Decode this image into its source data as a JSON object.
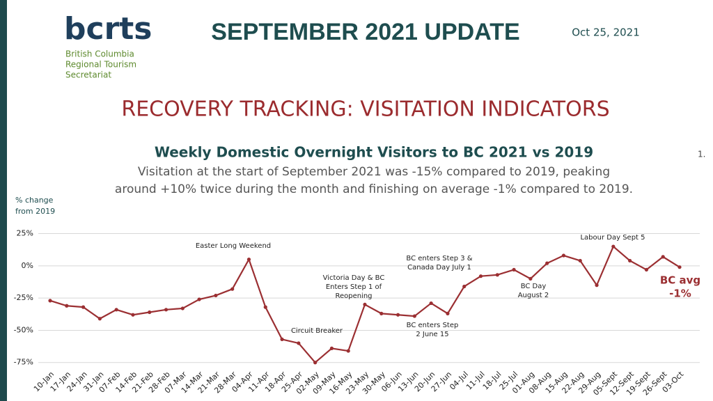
{
  "header": {
    "logo": "bcrts",
    "logo_lines": [
      "British Columbia",
      "Regional Tourism",
      "Secretariat"
    ],
    "title": "SEPTEMBER 2021 UPDATE",
    "date": "Oct 25, 2021",
    "heading": "RECOVERY TRACKING: VISITATION INDICATORS",
    "page_number": "1."
  },
  "chart_data": {
    "type": "line",
    "title": "Weekly Domestic Overnight Visitors to BC 2021 vs 2019",
    "subtitle": [
      "Visitation at the start of September 2021 was -15% compared to 2019, peaking",
      "around +10% twice during the month and finishing on average -1% compared to 2019."
    ],
    "y_label": [
      "% change",
      "from 2019"
    ],
    "categories": [
      "10-Jan",
      "17-Jan",
      "24-Jan",
      "31-Jan",
      "07-Feb",
      "14-Feb",
      "21-Feb",
      "28-Feb",
      "07-Mar",
      "14-Mar",
      "21-Mar",
      "28-Mar",
      "04-Apr",
      "11-Apr",
      "18-Apr",
      "25-Apr",
      "02-May",
      "09-May",
      "16-May",
      "23-May",
      "30-May",
      "06-Jun",
      "13-Jun",
      "20-Jun",
      "27-Jun",
      "04-Jul",
      "11-Jul",
      "18-Jul",
      "25-Jul",
      "01-Aug",
      "08-Aug",
      "15-Aug",
      "22-Aug",
      "29-Aug",
      "05-Sept",
      "12-Sept",
      "19-Sept",
      "26-Sept",
      "03-Oct"
    ],
    "values": [
      -27,
      -31,
      -32,
      -41,
      -34,
      -38,
      -36,
      -34,
      -33,
      -26,
      -23,
      -18,
      5,
      -32,
      -57,
      -60,
      -75,
      -64,
      -66,
      -30,
      -37,
      -38,
      -39,
      -29,
      -37,
      -16,
      -8,
      -7,
      -3,
      -10,
      2,
      8,
      4,
      -15,
      15,
      4,
      -3,
      7,
      -1
    ],
    "color": "#9b2f32",
    "ylim": [
      -80,
      28
    ],
    "yticks": [
      {
        "value": -75,
        "label": "-75%"
      },
      {
        "value": -50,
        "label": "-50%"
      },
      {
        "value": -25,
        "label": "-25%"
      },
      {
        "value": 0,
        "label": "0%"
      },
      {
        "value": 25,
        "label": "25%"
      }
    ],
    "grid": true,
    "annotations": [
      [
        "Easter Long Weekend"
      ],
      [
        "Circuit Breaker"
      ],
      [
        "Victoria Day & BC",
        "Enters Step 1 of",
        "Reopening"
      ],
      [
        "BC enters Step 3 &",
        "Canada Day July 1"
      ],
      [
        "BC enters Step",
        "2  June 15"
      ],
      [
        "BC Day",
        "August 2"
      ],
      [
        "Labour Day Sept 5"
      ]
    ],
    "avg_label": [
      "BC avg",
      "-1%"
    ]
  }
}
